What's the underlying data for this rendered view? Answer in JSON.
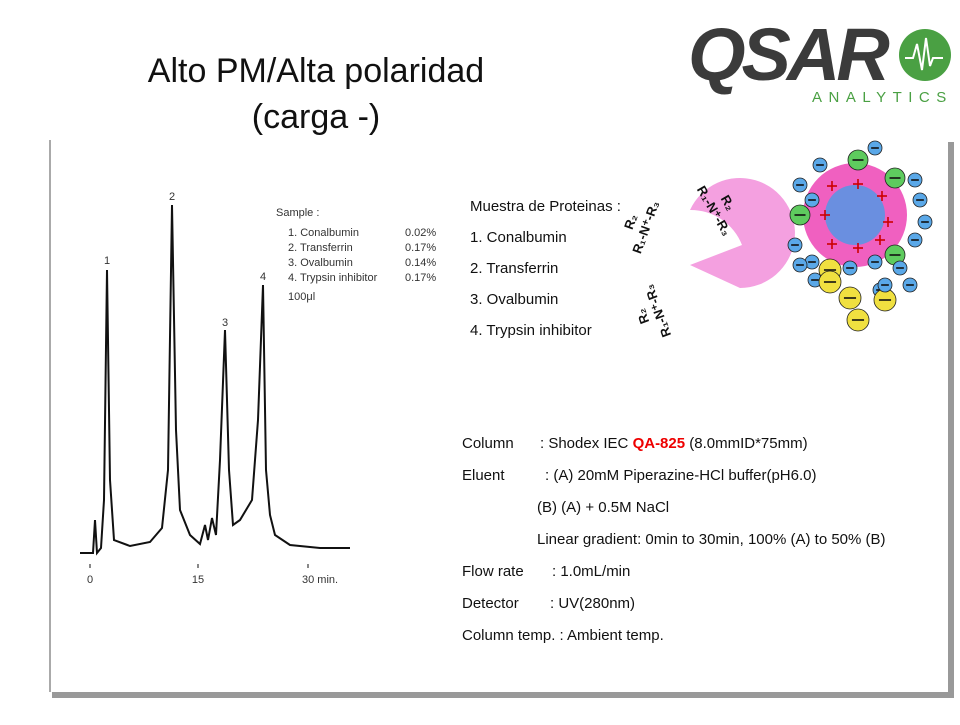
{
  "header": {
    "title_line1": "Alto PM/Alta polaridad",
    "title_line2": "(carga -)",
    "logo": "QSAR",
    "logo_sub": "ANALYTICS"
  },
  "chromatogram": {
    "peaks": [
      "1",
      "2",
      "3",
      "4"
    ],
    "sample_title": "Sample :",
    "sample_rows": [
      [
        "1. Conalbumin",
        "0.02%"
      ],
      [
        "2. Transferrin",
        "0.17%"
      ],
      [
        "3. Ovalbumin",
        "0.14%"
      ],
      [
        "4. Trypsin inhibitor",
        "0.17%"
      ]
    ],
    "volume": "100μl",
    "x_ticks": [
      "0",
      "15",
      "30 min."
    ]
  },
  "samples": {
    "title": "Muestra de Proteinas :",
    "items": [
      "1. Conalbumin",
      "2. Transferrin",
      "3. Ovalbumin",
      "4. Trypsin inhibitor"
    ]
  },
  "molecule": {
    "r2": "R₂",
    "amine": "R₁-N⁺-R₃"
  },
  "conditions": {
    "column_label": "Column",
    "column_pre": ": Shodex IEC ",
    "column_model": "QA-825",
    "column_post": " (8.0mmID*75mm)",
    "eluent_label": "Eluent",
    "eluent_a": ": (A) 20mM Piperazine-HCl buffer(pH6.0)",
    "eluent_b": "(B) (A) + 0.5M NaCl",
    "gradient": "Linear gradient: 0min to 30min, 100% (A) to 50% (B)",
    "flow_label": "Flow rate",
    "flow": ": 1.0mL/min",
    "detector_label": "Detector",
    "detector": ": UV(280nm)",
    "temp": "Column temp. : Ambient temp."
  }
}
